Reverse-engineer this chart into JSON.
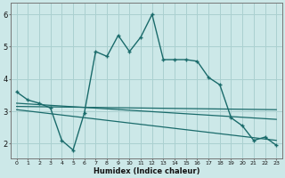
{
  "xlabel": "Humidex (Indice chaleur)",
  "bg_color": "#cce8e8",
  "grid_color": "#aad0d0",
  "line_color": "#1a6b6b",
  "xlim": [
    -0.5,
    23.5
  ],
  "ylim": [
    1.55,
    6.35
  ],
  "yticks": [
    2,
    3,
    4,
    5,
    6
  ],
  "xticks": [
    0,
    1,
    2,
    3,
    4,
    5,
    6,
    7,
    8,
    9,
    10,
    11,
    12,
    13,
    14,
    15,
    16,
    17,
    18,
    19,
    20,
    21,
    22,
    23
  ],
  "line1_x": [
    0,
    1,
    2,
    3,
    4,
    5,
    6,
    7,
    8,
    9,
    10,
    11,
    12,
    13,
    14,
    15,
    16,
    17,
    18,
    19,
    20,
    21,
    22,
    23
  ],
  "line1_y": [
    3.6,
    3.35,
    3.25,
    3.1,
    2.1,
    1.8,
    2.95,
    4.85,
    4.7,
    5.35,
    4.85,
    5.3,
    6.0,
    4.6,
    4.6,
    4.6,
    4.55,
    4.05,
    3.82,
    2.8,
    2.55,
    2.1,
    2.2,
    1.95
  ],
  "line2_x": [
    0,
    23
  ],
  "line2_y": [
    3.25,
    2.75
  ],
  "line3_x": [
    0,
    23
  ],
  "line3_y": [
    3.15,
    3.05
  ],
  "line4_x": [
    0,
    23
  ],
  "line4_y": [
    3.05,
    2.1
  ]
}
